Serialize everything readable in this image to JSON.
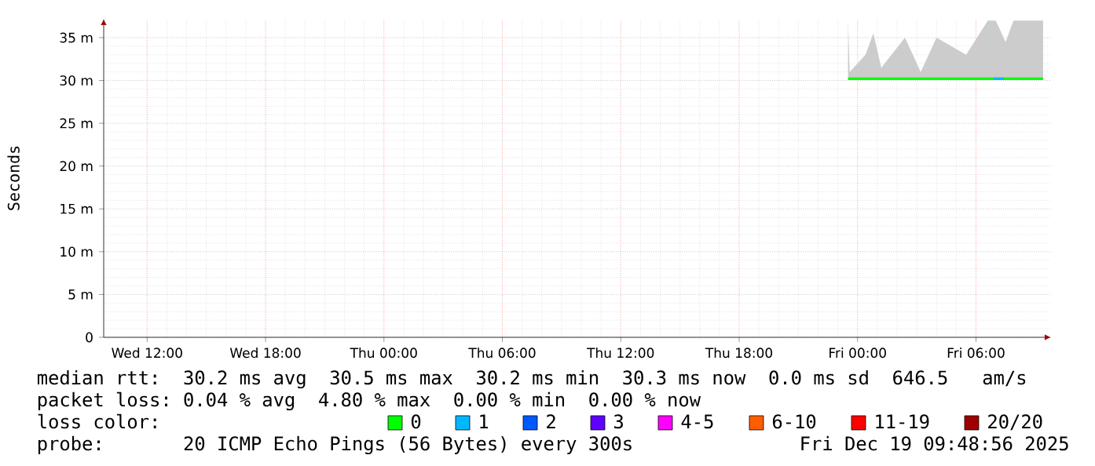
{
  "chart_data": {
    "type": "line",
    "ylabel": "Seconds",
    "xlim": [
      "2025-12-17T09:48",
      "2025-12-19T09:48"
    ],
    "xticks": [
      {
        "value": "2025-12-17T12:00",
        "label": "Wed 12:00"
      },
      {
        "value": "2025-12-17T18:00",
        "label": "Wed 18:00"
      },
      {
        "value": "2025-12-18T00:00",
        "label": "Thu 00:00"
      },
      {
        "value": "2025-12-18T06:00",
        "label": "Thu 06:00"
      },
      {
        "value": "2025-12-18T12:00",
        "label": "Thu 12:00"
      },
      {
        "value": "2025-12-18T18:00",
        "label": "Thu 18:00"
      },
      {
        "value": "2025-12-19T00:00",
        "label": "Fri 00:00"
      },
      {
        "value": "2025-12-19T06:00",
        "label": "Fri 06:00"
      }
    ],
    "ylim": [
      0,
      37.2
    ],
    "yticks": [
      0,
      {
        "value": 5,
        "label": "5 m"
      },
      {
        "value": 10,
        "label": "10 m"
      },
      {
        "value": 15,
        "label": "15 m"
      },
      {
        "value": 20,
        "label": "20 m"
      },
      {
        "value": 25,
        "label": "25 m"
      },
      {
        "value": 30,
        "label": "30 m"
      },
      {
        "value": 35,
        "label": "35 m"
      }
    ],
    "grid": true,
    "legend": "bottom",
    "series": [
      {
        "name": "0",
        "color": "#00ff00",
        "x": [
          "2025-12-18T23:31",
          "2025-12-18T23:36",
          "2025-12-19T00:00",
          "2025-12-19T00:24",
          "2025-12-19T00:48",
          "2025-12-19T01:12",
          "2025-12-19T02:24",
          "2025-12-19T03:12",
          "2025-12-19T04:00",
          "2025-12-19T05:30",
          "2025-12-19T06:36",
          "2025-12-19T07:00",
          "2025-12-19T07:30",
          "2025-12-19T07:54",
          "2025-12-19T08:36",
          "2025-12-19T09:24"
        ],
        "values": [
          30.2,
          30.2,
          30.2,
          30.2,
          30.2,
          30.2,
          30.2,
          30.2,
          30.2,
          30.2,
          30.2,
          30.2,
          30.2,
          30.2,
          30.2,
          30.2
        ],
        "lower": [
          30.1,
          30.1,
          30.1,
          30.1,
          30.1,
          30.1,
          30.1,
          30.1,
          30.1,
          30.1,
          30.1,
          30.1,
          30.1,
          30.1,
          30.1,
          30.1
        ],
        "upper": [
          37,
          31,
          32,
          33,
          35.5,
          31.5,
          35,
          31,
          35,
          33,
          37,
          37,
          34.5,
          37,
          37,
          37
        ]
      },
      {
        "name": "1",
        "color": "#00b8ff",
        "x": [
          "2025-12-19T06:54",
          "2025-12-19T07:24"
        ],
        "values": [
          30.2,
          30.2
        ]
      },
      {
        "name": "2",
        "color": "#0059ff"
      },
      {
        "name": "3",
        "color": "#5e00ff"
      },
      {
        "name": "4-5",
        "color": "#ff00ff"
      },
      {
        "name": "6-10",
        "color": "#ff5e00"
      },
      {
        "name": "11-19",
        "color": "#ff0000"
      },
      {
        "name": "20/20",
        "color": "#a10000"
      }
    ],
    "annotations": [
      "median rtt:  30.2 ms avg  30.5 ms max  30.2 ms min  30.3 ms now  0.0 ms sd  646.5   am/s",
      "packet loss: 0.04 % avg  4.80 % max  0.00 % min  0.00 % now",
      "loss color:",
      "probe:       20 ICMP Echo Pings (56 Bytes) every 300s",
      "Fri Dec 19 09:48:56 2025"
    ]
  }
}
